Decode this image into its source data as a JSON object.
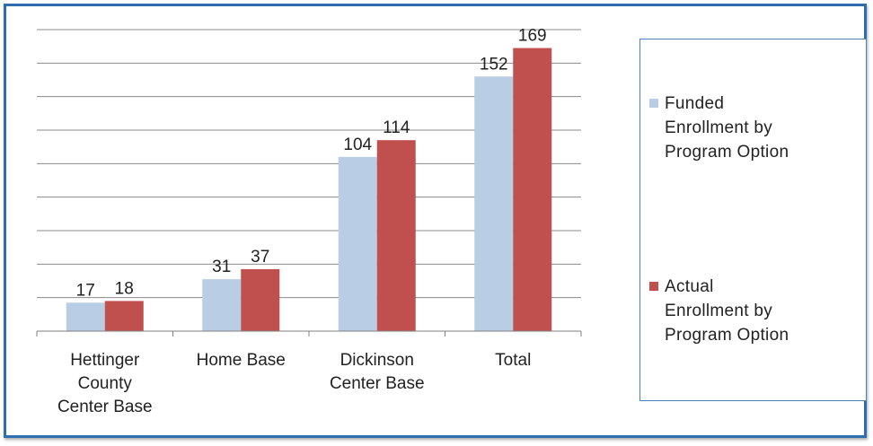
{
  "chart_data": {
    "type": "bar",
    "categories": [
      "Hettinger County Center Base",
      "Home Base",
      "Dickinson Center Base",
      "Total"
    ],
    "category_lines": [
      [
        "Hettinger",
        "County",
        "Center Base"
      ],
      [
        "Home Base"
      ],
      [
        "Dickinson",
        "Center Base"
      ],
      [
        "Total"
      ]
    ],
    "series": [
      {
        "name": "Funded Enrollment by Program Option",
        "legend_lines": [
          "Funded",
          "Enrollment by",
          "Program Option"
        ],
        "values": [
          17,
          31,
          104,
          152
        ],
        "color": "#b9cde5"
      },
      {
        "name": "Actual Enrollment by Program Option",
        "legend_lines": [
          "Actual",
          "Enrollment by",
          "Program Option"
        ],
        "values": [
          18,
          37,
          114,
          169
        ],
        "color": "#c0504d"
      }
    ],
    "ylim": [
      0,
      180
    ],
    "gridlines": true,
    "legend_position": "right",
    "title": "",
    "xlabel": "",
    "ylabel": ""
  },
  "colors": {
    "frame_border": "#2e6db0",
    "gridline": "#8c8c8c",
    "axis": "#7f7f7f",
    "text": "#222222"
  }
}
